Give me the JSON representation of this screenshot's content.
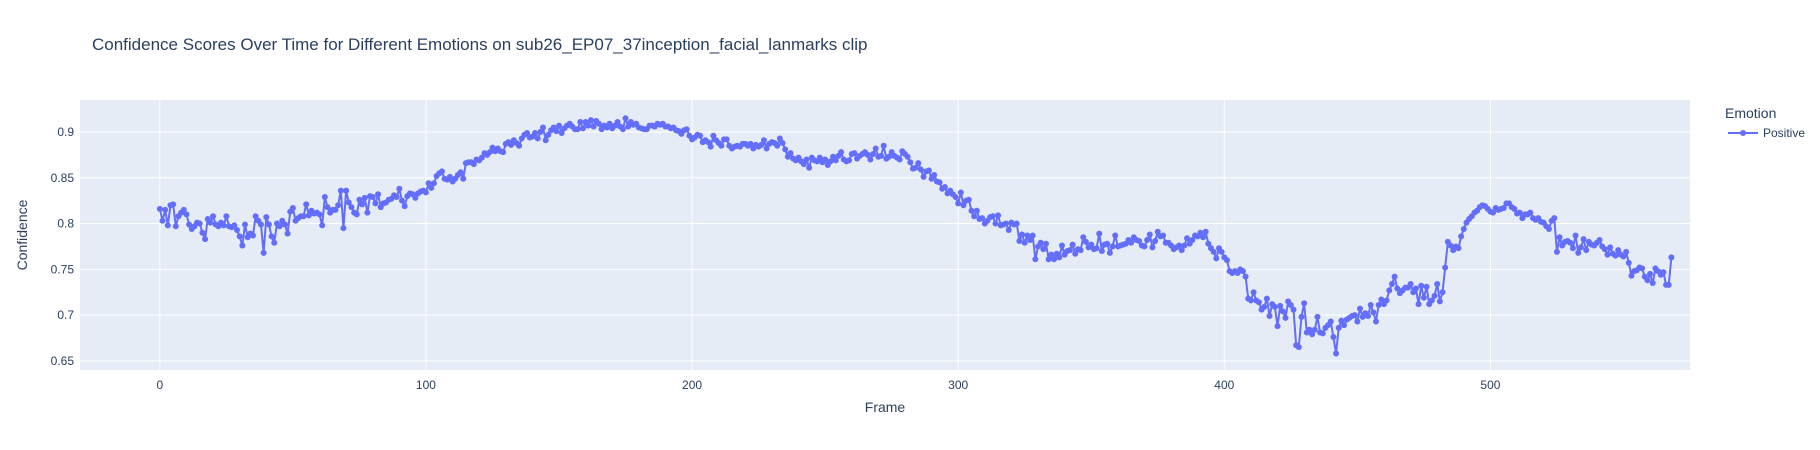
{
  "chart_data": {
    "type": "line",
    "title": "Confidence Scores Over Time for Different Emotions on sub26_EP07_37inception_facial_lanmarks clip",
    "xlabel": "Frame",
    "ylabel": "Confidence",
    "xlim": [
      -30,
      575
    ],
    "ylim": [
      0.64,
      0.935
    ],
    "x_ticks": [
      0,
      100,
      200,
      300,
      400,
      500
    ],
    "y_ticks": [
      0.65,
      0.7,
      0.75,
      0.8,
      0.85,
      0.9
    ],
    "x_tick_labels": [
      "0",
      "100",
      "200",
      "300",
      "400",
      "500"
    ],
    "y_tick_labels": [
      "0.65",
      "0.7",
      "0.75",
      "0.8",
      "0.85",
      "0.9"
    ],
    "grid": true,
    "legend": {
      "title": "Emotion",
      "placement": "top-right"
    },
    "series": [
      {
        "name": "Positive",
        "color": "#636efa",
        "mode": "lines+markers",
        "x_start": 0,
        "x_step": 1,
        "values": [
          0.816,
          0.803,
          0.815,
          0.798,
          0.82,
          0.821,
          0.797,
          0.808,
          0.812,
          0.815,
          0.81,
          0.799,
          0.794,
          0.797,
          0.801,
          0.8,
          0.79,
          0.783,
          0.805,
          0.801,
          0.808,
          0.799,
          0.797,
          0.801,
          0.798,
          0.808,
          0.797,
          0.796,
          0.798,
          0.793,
          0.786,
          0.776,
          0.799,
          0.785,
          0.789,
          0.787,
          0.808,
          0.803,
          0.799,
          0.768,
          0.807,
          0.799,
          0.786,
          0.779,
          0.8,
          0.797,
          0.803,
          0.799,
          0.789,
          0.813,
          0.817,
          0.803,
          0.806,
          0.808,
          0.808,
          0.821,
          0.809,
          0.814,
          0.811,
          0.812,
          0.81,
          0.798,
          0.829,
          0.818,
          0.812,
          0.815,
          0.815,
          0.82,
          0.836,
          0.795,
          0.836,
          0.823,
          0.818,
          0.812,
          0.81,
          0.826,
          0.821,
          0.828,
          0.812,
          0.83,
          0.829,
          0.822,
          0.832,
          0.818,
          0.822,
          0.823,
          0.826,
          0.827,
          0.831,
          0.829,
          0.838,
          0.825,
          0.819,
          0.83,
          0.833,
          0.832,
          0.828,
          0.833,
          0.835,
          0.836,
          0.834,
          0.844,
          0.839,
          0.844,
          0.852,
          0.855,
          0.857,
          0.849,
          0.848,
          0.851,
          0.846,
          0.849,
          0.853,
          0.856,
          0.849,
          0.866,
          0.867,
          0.867,
          0.865,
          0.87,
          0.869,
          0.872,
          0.877,
          0.875,
          0.878,
          0.883,
          0.879,
          0.882,
          0.879,
          0.878,
          0.887,
          0.889,
          0.886,
          0.891,
          0.888,
          0.885,
          0.893,
          0.897,
          0.899,
          0.894,
          0.895,
          0.899,
          0.893,
          0.9,
          0.905,
          0.891,
          0.897,
          0.902,
          0.905,
          0.901,
          0.907,
          0.899,
          0.904,
          0.907,
          0.909,
          0.906,
          0.903,
          0.903,
          0.911,
          0.904,
          0.911,
          0.907,
          0.913,
          0.906,
          0.912,
          0.909,
          0.903,
          0.907,
          0.905,
          0.909,
          0.904,
          0.907,
          0.911,
          0.906,
          0.903,
          0.915,
          0.906,
          0.911,
          0.908,
          0.909,
          0.905,
          0.904,
          0.903,
          0.903,
          0.907,
          0.907,
          0.906,
          0.909,
          0.908,
          0.909,
          0.906,
          0.906,
          0.904,
          0.905,
          0.902,
          0.901,
          0.898,
          0.902,
          0.903,
          0.896,
          0.892,
          0.894,
          0.897,
          0.896,
          0.889,
          0.891,
          0.889,
          0.884,
          0.896,
          0.891,
          0.888,
          0.885,
          0.892,
          0.892,
          0.885,
          0.882,
          0.884,
          0.885,
          0.884,
          0.887,
          0.887,
          0.885,
          0.887,
          0.882,
          0.886,
          0.884,
          0.886,
          0.891,
          0.882,
          0.887,
          0.889,
          0.888,
          0.885,
          0.893,
          0.888,
          0.881,
          0.873,
          0.877,
          0.871,
          0.869,
          0.872,
          0.868,
          0.865,
          0.87,
          0.861,
          0.872,
          0.869,
          0.868,
          0.872,
          0.867,
          0.87,
          0.864,
          0.868,
          0.873,
          0.869,
          0.874,
          0.878,
          0.87,
          0.868,
          0.869,
          0.876,
          0.877,
          0.871,
          0.874,
          0.876,
          0.878,
          0.875,
          0.87,
          0.876,
          0.882,
          0.873,
          0.874,
          0.885,
          0.871,
          0.873,
          0.878,
          0.874,
          0.872,
          0.87,
          0.879,
          0.876,
          0.873,
          0.867,
          0.86,
          0.861,
          0.866,
          0.859,
          0.851,
          0.857,
          0.858,
          0.849,
          0.853,
          0.846,
          0.845,
          0.838,
          0.84,
          0.833,
          0.836,
          0.832,
          0.829,
          0.822,
          0.834,
          0.82,
          0.825,
          0.826,
          0.814,
          0.808,
          0.814,
          0.805,
          0.806,
          0.8,
          0.803,
          0.807,
          0.808,
          0.8,
          0.809,
          0.798,
          0.799,
          0.8,
          0.793,
          0.801,
          0.799,
          0.8,
          0.781,
          0.788,
          0.779,
          0.787,
          0.782,
          0.787,
          0.761,
          0.775,
          0.779,
          0.772,
          0.778,
          0.761,
          0.766,
          0.761,
          0.767,
          0.763,
          0.776,
          0.766,
          0.77,
          0.771,
          0.777,
          0.767,
          0.772,
          0.771,
          0.785,
          0.78,
          0.774,
          0.777,
          0.772,
          0.773,
          0.789,
          0.77,
          0.777,
          0.778,
          0.768,
          0.775,
          0.787,
          0.775,
          0.776,
          0.777,
          0.778,
          0.782,
          0.779,
          0.785,
          0.782,
          0.781,
          0.776,
          0.775,
          0.782,
          0.788,
          0.774,
          0.781,
          0.791,
          0.786,
          0.787,
          0.779,
          0.779,
          0.776,
          0.772,
          0.774,
          0.776,
          0.771,
          0.776,
          0.784,
          0.778,
          0.782,
          0.787,
          0.786,
          0.79,
          0.785,
          0.791,
          0.778,
          0.773,
          0.769,
          0.762,
          0.773,
          0.769,
          0.763,
          0.76,
          0.748,
          0.746,
          0.748,
          0.746,
          0.75,
          0.748,
          0.742,
          0.718,
          0.716,
          0.725,
          0.716,
          0.714,
          0.706,
          0.709,
          0.718,
          0.699,
          0.712,
          0.709,
          0.688,
          0.71,
          0.704,
          0.697,
          0.715,
          0.711,
          0.706,
          0.667,
          0.665,
          0.698,
          0.713,
          0.681,
          0.684,
          0.679,
          0.684,
          0.698,
          0.681,
          0.68,
          0.686,
          0.689,
          0.693,
          0.676,
          0.658,
          0.686,
          0.694,
          0.689,
          0.695,
          0.697,
          0.699,
          0.7,
          0.693,
          0.707,
          0.698,
          0.702,
          0.699,
          0.711,
          0.703,
          0.693,
          0.711,
          0.717,
          0.712,
          0.716,
          0.727,
          0.734,
          0.742,
          0.729,
          0.724,
          0.727,
          0.73,
          0.73,
          0.734,
          0.725,
          0.729,
          0.712,
          0.732,
          0.719,
          0.731,
          0.712,
          0.716,
          0.721,
          0.734,
          0.715,
          0.725,
          0.752,
          0.78,
          0.776,
          0.771,
          0.775,
          0.773,
          0.786,
          0.794,
          0.801,
          0.805,
          0.808,
          0.812,
          0.814,
          0.818,
          0.82,
          0.819,
          0.816,
          0.813,
          0.812,
          0.817,
          0.815,
          0.816,
          0.817,
          0.822,
          0.822,
          0.818,
          0.816,
          0.811,
          0.812,
          0.806,
          0.81,
          0.81,
          0.812,
          0.806,
          0.804,
          0.806,
          0.802,
          0.801,
          0.797,
          0.794,
          0.803,
          0.806,
          0.769,
          0.785,
          0.776,
          0.78,
          0.781,
          0.779,
          0.773,
          0.787,
          0.768,
          0.774,
          0.783,
          0.771,
          0.78,
          0.777,
          0.776,
          0.779,
          0.782,
          0.775,
          0.772,
          0.766,
          0.774,
          0.767,
          0.765,
          0.771,
          0.766,
          0.764,
          0.769,
          0.757,
          0.743,
          0.748,
          0.749,
          0.752,
          0.751,
          0.742,
          0.738,
          0.745,
          0.735,
          0.751,
          0.748,
          0.744,
          0.747,
          0.733,
          0.733,
          0.763
        ]
      }
    ]
  }
}
